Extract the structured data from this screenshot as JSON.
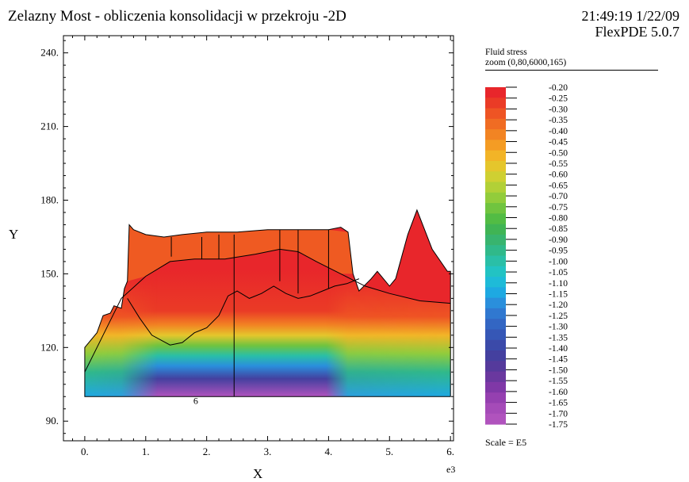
{
  "header": {
    "title": "Zelazny Most - obliczenia konsolidacji w przekroju -2D",
    "timestamp": "21:49:19 1/22/09",
    "software": "FlexPDE 5.0.7"
  },
  "legend": {
    "variable": "Fluid stress",
    "zoom": "zoom (0,80,6000,165)",
    "scale": "Scale = E5",
    "levels": [
      "-0.20",
      "-0.25",
      "-0.30",
      "-0.35",
      "-0.40",
      "-0.45",
      "-0.50",
      "-0.55",
      "-0.60",
      "-0.65",
      "-0.70",
      "-0.75",
      "-0.80",
      "-0.85",
      "-0.90",
      "-0.95",
      "-1.00",
      "-1.05",
      "-1.10",
      "-1.15",
      "-1.20",
      "-1.25",
      "-1.30",
      "-1.35",
      "-1.40",
      "-1.45",
      "-1.50",
      "-1.55",
      "-1.60",
      "-1.65",
      "-1.70",
      "-1.75"
    ],
    "colors": [
      "#e8262b",
      "#ea3b26",
      "#ee5424",
      "#f06c23",
      "#f28423",
      "#f49c24",
      "#f2b427",
      "#e5c62c",
      "#cfd032",
      "#b2d037",
      "#92cc3b",
      "#70c43f",
      "#52bc44",
      "#40b454",
      "#38b46e",
      "#30b98a",
      "#2abfa7",
      "#22c3c3",
      "#1ebbd8",
      "#1ea9e2",
      "#2a8fdc",
      "#3078d0",
      "#3366c3",
      "#3657b6",
      "#3b4aa9",
      "#44409f",
      "#553a9c",
      "#6a389f",
      "#8038a7",
      "#9540b0",
      "#a54bb8",
      "#b053bd"
    ]
  },
  "chart_data": {
    "type": "heatmap",
    "title": "Fluid stress",
    "xlabel": "X",
    "ylabel": "Y",
    "x_multiplier": "e3",
    "xlim": [
      -0.35,
      6.05
    ],
    "ylim": [
      82,
      247
    ],
    "x_ticks": [
      "0.",
      "1.",
      "2.",
      "3.",
      "4.",
      "5.",
      "6."
    ],
    "y_ticks": [
      "90.",
      "120.",
      "150.",
      "180.",
      "210.",
      "240."
    ],
    "interior_label": "6",
    "domain_top_boundary": [
      [
        0.0,
        100
      ],
      [
        0.0,
        120
      ],
      [
        0.2,
        126
      ],
      [
        0.3,
        133
      ],
      [
        0.42,
        134
      ],
      [
        0.48,
        137
      ],
      [
        0.6,
        136
      ],
      [
        0.65,
        144
      ],
      [
        0.7,
        147
      ],
      [
        0.73,
        170
      ],
      [
        0.8,
        168
      ],
      [
        1.0,
        166
      ],
      [
        1.3,
        165
      ],
      [
        1.6,
        166
      ],
      [
        2.0,
        167
      ],
      [
        2.5,
        167
      ],
      [
        3.0,
        168
      ],
      [
        3.5,
        168
      ],
      [
        4.0,
        168
      ],
      [
        4.2,
        169
      ],
      [
        4.32,
        167
      ],
      [
        4.4,
        150
      ],
      [
        4.5,
        143
      ],
      [
        4.7,
        148
      ],
      [
        4.8,
        151
      ],
      [
        5.0,
        145
      ],
      [
        5.1,
        148
      ],
      [
        5.3,
        166
      ],
      [
        5.45,
        176
      ],
      [
        5.7,
        160
      ],
      [
        5.95,
        151
      ],
      [
        6.0,
        151
      ],
      [
        6.0,
        100
      ]
    ],
    "water_table": [
      [
        0.0,
        110
      ],
      [
        0.3,
        125
      ],
      [
        0.6,
        140
      ],
      [
        1.0,
        149
      ],
      [
        1.4,
        155
      ],
      [
        1.8,
        156
      ],
      [
        2.3,
        156
      ],
      [
        2.8,
        158
      ],
      [
        3.2,
        160
      ],
      [
        3.5,
        159
      ],
      [
        3.8,
        155
      ],
      [
        4.2,
        150
      ],
      [
        4.6,
        145
      ],
      [
        5.0,
        142
      ],
      [
        5.5,
        139
      ],
      [
        6.0,
        138
      ]
    ],
    "lower_boundary": [
      [
        0.7,
        140
      ],
      [
        0.9,
        132
      ],
      [
        1.1,
        125
      ],
      [
        1.4,
        121
      ],
      [
        1.6,
        122
      ],
      [
        1.8,
        126
      ],
      [
        2.0,
        128
      ],
      [
        2.2,
        133
      ],
      [
        2.35,
        141
      ],
      [
        2.5,
        143
      ],
      [
        2.7,
        140
      ],
      [
        2.9,
        142
      ],
      [
        3.1,
        145
      ],
      [
        3.3,
        142
      ],
      [
        3.5,
        140
      ],
      [
        3.7,
        141
      ],
      [
        3.9,
        143
      ],
      [
        4.1,
        145
      ],
      [
        4.3,
        146
      ],
      [
        4.5,
        148
      ]
    ],
    "vertical_divisions": [
      [
        1.42,
        157,
        165
      ],
      [
        1.92,
        156,
        165
      ],
      [
        2.2,
        156,
        166
      ],
      [
        2.45,
        100,
        166
      ],
      [
        3.2,
        147,
        168
      ],
      [
        3.5,
        142,
        168
      ],
      [
        4.0,
        144,
        168
      ]
    ],
    "contour_field": {
      "description": "Fluid stress ×1e5: about -0.20 at the domain surface (red), falling to about -1.75 at the base (purple) under the embankment; approximately -1.1 at the base toward the left and right ends",
      "surface_value": -0.2,
      "base_center_value": -1.75,
      "base_edge_value": -1.1
    }
  }
}
